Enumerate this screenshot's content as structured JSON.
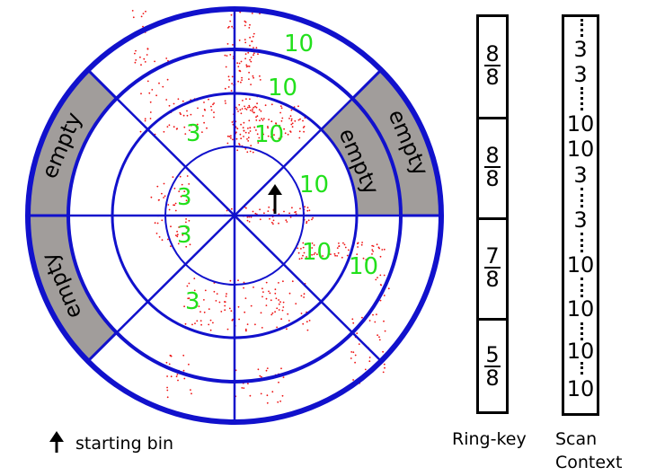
{
  "diagram": {
    "empty_label": "empty",
    "bin_values": [
      {
        "text": "10",
        "color": "#22e01c"
      },
      {
        "text": "10",
        "color": "#22e01c"
      },
      {
        "text": "10",
        "color": "#22e01c"
      },
      {
        "text": "10",
        "color": "#22e01c"
      },
      {
        "text": "10",
        "color": "#22e01c"
      },
      {
        "text": "10",
        "color": "#22e01c"
      },
      {
        "text": "3",
        "color": "#22e01c"
      },
      {
        "text": "3",
        "color": "#22e01c"
      },
      {
        "text": "3",
        "color": "#22e01c"
      },
      {
        "text": "3",
        "color": "#22e01c"
      }
    ],
    "colors": {
      "ring": "#1111cc",
      "empty_fill": "#a19d9b",
      "points": "#ee1111",
      "values": "#22e01c"
    }
  },
  "legend": {
    "starting_bin_label": "starting bin",
    "arrow_icon": "up-arrow-icon"
  },
  "ring_key": {
    "caption": "Ring-key",
    "cells": [
      {
        "num": "8",
        "den": "8"
      },
      {
        "num": "8",
        "den": "8"
      },
      {
        "num": "7",
        "den": "8"
      },
      {
        "num": "5",
        "den": "8"
      }
    ]
  },
  "scan_context": {
    "caption_line1": "Scan",
    "caption_line2": "Context",
    "values": [
      "3",
      "3",
      "10",
      "10",
      "3",
      "3",
      "10",
      "10",
      "10",
      "10"
    ]
  }
}
